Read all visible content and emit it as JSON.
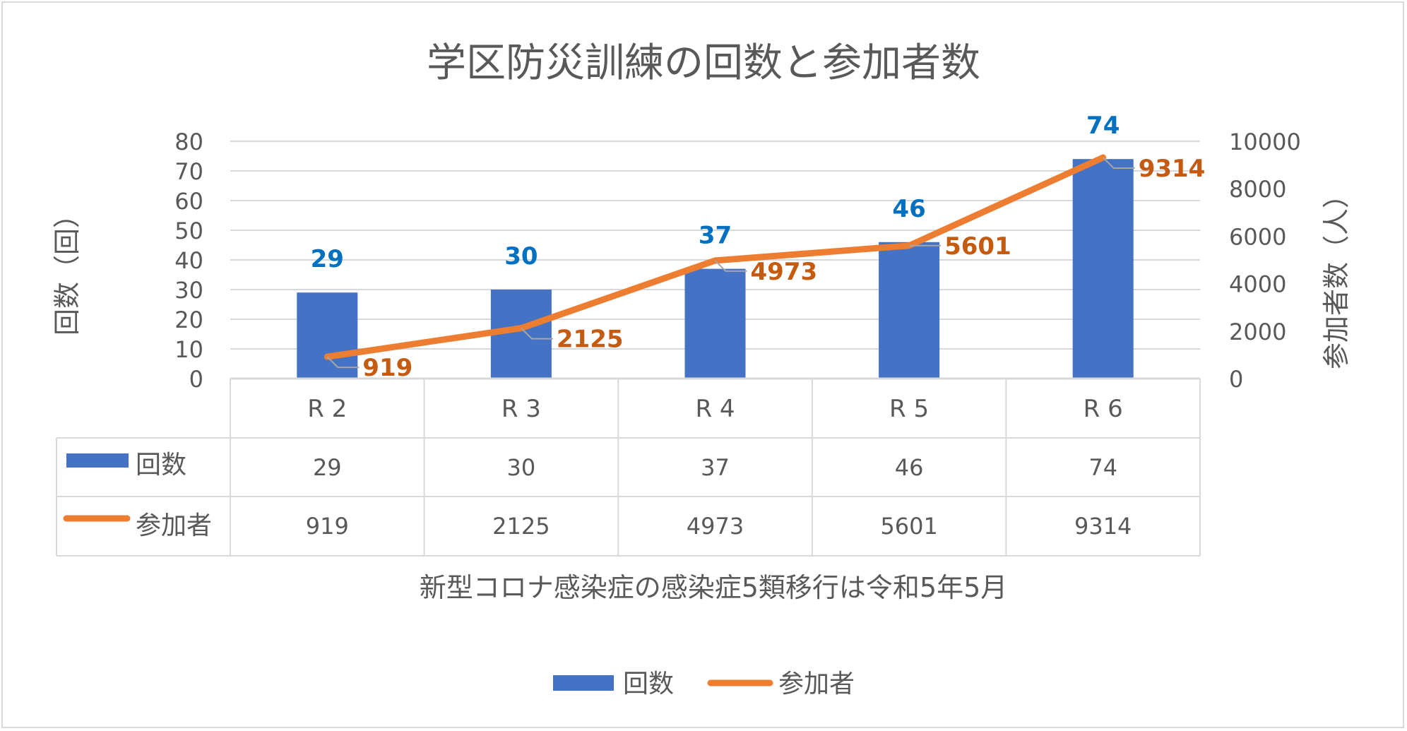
{
  "chart_data": {
    "type": "bar+line",
    "title": "学区防災訓練の回数と参加者数",
    "categories": [
      "R 2",
      "R 3",
      "R 4",
      "R 5",
      "R 6"
    ],
    "series": [
      {
        "name": "回数",
        "type": "bar",
        "axis": "left",
        "values": [
          29,
          30,
          37,
          46,
          74
        ],
        "color": "#4472C4",
        "label_color": "#0070C0"
      },
      {
        "name": "参加者",
        "type": "line",
        "axis": "right",
        "values": [
          919,
          2125,
          4973,
          5601,
          9314
        ],
        "color": "#ED7D31",
        "label_color": "#C55A11"
      }
    ],
    "y_left": {
      "label": "回数（回）",
      "lim": [
        0,
        80
      ],
      "ticks": [
        0,
        10,
        20,
        30,
        40,
        50,
        60,
        70,
        80
      ]
    },
    "y_right": {
      "label": "参加者数（人）",
      "lim": [
        0,
        10000
      ],
      "ticks": [
        0,
        2000,
        4000,
        6000,
        8000,
        10000
      ]
    },
    "xlabel": "新型コロナ感染症の感染症5類移行は令和5年5月",
    "grid": true,
    "data_table": true,
    "legend": "bottom"
  }
}
